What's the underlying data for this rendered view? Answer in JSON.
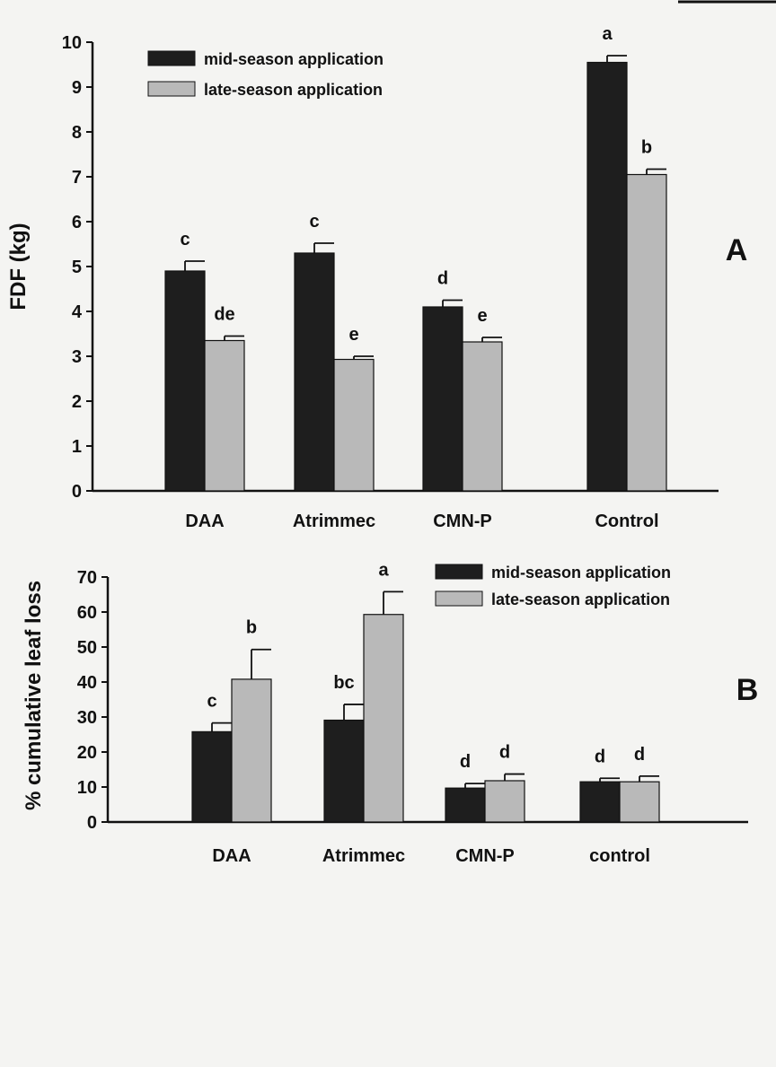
{
  "colors": {
    "mid": "#1e1e1e",
    "late": "#b9b9b9",
    "axis": "#111111"
  },
  "chart_data": [
    {
      "type": "bar",
      "panel_label": "A",
      "ylabel": "FDF (kg)",
      "xlabel": "",
      "ylim": [
        0,
        10
      ],
      "yticks": [
        0,
        1,
        2,
        3,
        4,
        5,
        6,
        7,
        8,
        9,
        10
      ],
      "categories": [
        "DAA",
        "Atrimmec",
        "CMN-P",
        "Control"
      ],
      "legend_position": "top-left",
      "series": [
        {
          "name": "mid-season application",
          "values": [
            4.9,
            5.3,
            4.1,
            9.55
          ],
          "errors": [
            0.22,
            0.22,
            0.15,
            0.15
          ],
          "letters": [
            "c",
            "c",
            "d",
            "a"
          ]
        },
        {
          "name": "late-season application",
          "values": [
            3.35,
            2.93,
            3.32,
            7.05
          ],
          "errors": [
            0.1,
            0.07,
            0.1,
            0.12
          ],
          "letters": [
            "de",
            "e",
            "e",
            "b"
          ]
        }
      ]
    },
    {
      "type": "bar",
      "panel_label": "B",
      "ylabel": "% cumulative leaf loss",
      "xlabel": "",
      "ylim": [
        0,
        70
      ],
      "yticks": [
        0,
        10,
        20,
        30,
        40,
        50,
        60,
        70
      ],
      "categories": [
        "DAA",
        "Atrimmec",
        "CMN-P",
        "control"
      ],
      "legend_position": "top-right",
      "series": [
        {
          "name": "mid-season application",
          "values": [
            25.8,
            29.1,
            9.7,
            11.5
          ],
          "errors": [
            2.5,
            4.5,
            1.3,
            1.0
          ],
          "letters": [
            "c",
            "bc",
            "d",
            "d"
          ]
        },
        {
          "name": "late-season application",
          "values": [
            40.8,
            59.3,
            11.8,
            11.5
          ],
          "errors": [
            8.5,
            6.5,
            1.9,
            1.6
          ],
          "letters": [
            "b",
            "a",
            "d",
            "d"
          ]
        }
      ]
    }
  ]
}
